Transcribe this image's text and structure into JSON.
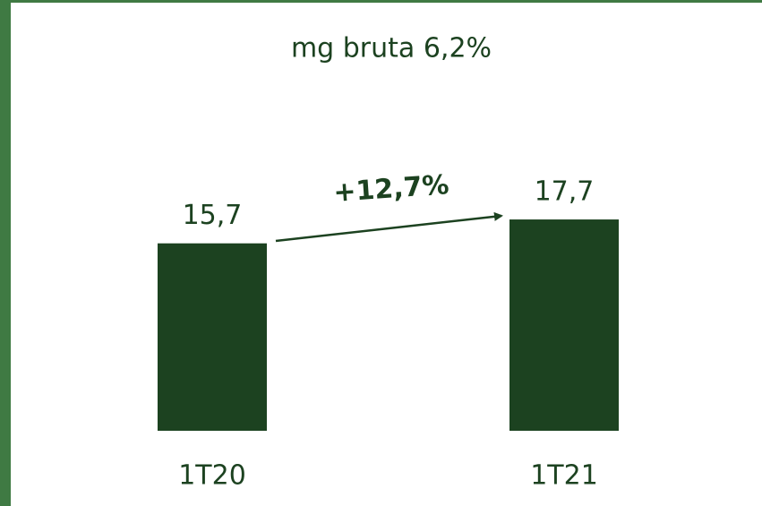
{
  "chart_data": {
    "type": "bar",
    "title": "mg bruta 6,2%",
    "categories": [
      "1T20",
      "1T21"
    ],
    "values": [
      15.7,
      17.7
    ],
    "value_labels": [
      "15,7",
      "17,7"
    ],
    "color": "#1c4220",
    "annotation": "+12,7%"
  }
}
